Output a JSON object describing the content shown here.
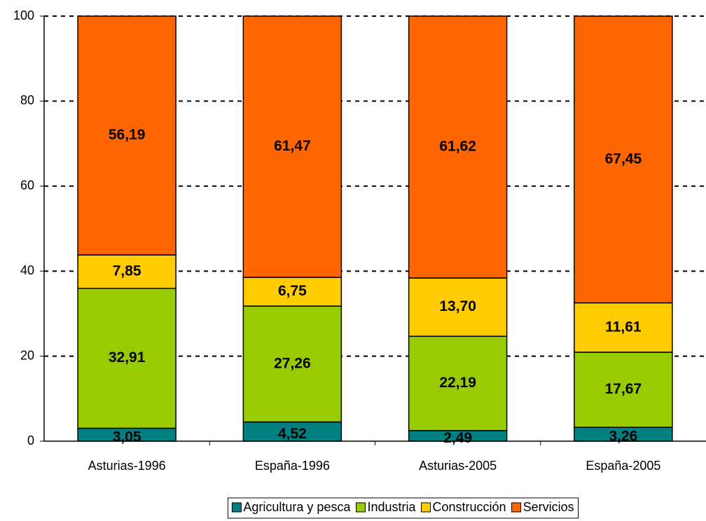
{
  "chart_data": {
    "type": "stacked_bar",
    "categories": [
      "Asturias-1996",
      "España-1996",
      "Asturias-2005",
      "España-2005"
    ],
    "series": [
      {
        "name": "Agricultura y pesca",
        "color": "#008080",
        "values": [
          3.05,
          4.52,
          2.49,
          3.26
        ],
        "value_labels": [
          "3,05",
          "4,52",
          "2,49",
          "3,26"
        ]
      },
      {
        "name": "Industria",
        "color": "#99cc00",
        "values": [
          32.91,
          27.26,
          22.19,
          17.67
        ],
        "value_labels": [
          "32,91",
          "27,26",
          "22,19",
          "17,67"
        ]
      },
      {
        "name": "Construcción",
        "color": "#ffcc00",
        "values": [
          7.85,
          6.75,
          13.7,
          11.61
        ],
        "value_labels": [
          "7,85",
          "6,75",
          "13,70",
          "11,61"
        ]
      },
      {
        "name": "Servicios",
        "color": "#ff6600",
        "values": [
          56.19,
          61.47,
          61.62,
          67.45
        ],
        "value_labels": [
          "56,19",
          "61,47",
          "61,62",
          "67,45"
        ]
      }
    ],
    "ylim": [
      0,
      100
    ],
    "yticks": [
      0,
      20,
      40,
      60,
      80,
      100
    ],
    "grid": true,
    "legend": "bottom"
  }
}
